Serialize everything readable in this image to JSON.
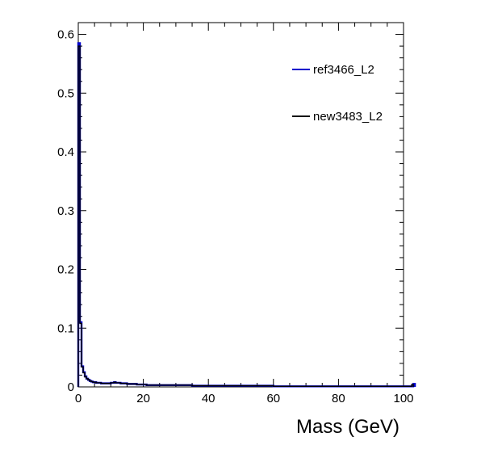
{
  "chart_data": {
    "type": "line",
    "title": "",
    "xlabel": "Mass (GeV)",
    "ylabel": "",
    "xlim": [
      0,
      100
    ],
    "ylim": [
      0,
      0.62
    ],
    "x_ticks": [
      "0",
      "20",
      "40",
      "60",
      "80",
      "100"
    ],
    "y_ticks": [
      "0",
      "0.1",
      "0.2",
      "0.3",
      "0.4",
      "0.5",
      "0.6"
    ],
    "legend_position": "top-right",
    "grid": false,
    "bin_width": 0.5,
    "series": [
      {
        "name": "ref3466_L2",
        "color": "#0000cc",
        "values": [
          0.585,
          0.11,
          0.035,
          0.025,
          0.018,
          0.014,
          0.012,
          0.01,
          0.009,
          0.008,
          0.008,
          0.007,
          0.007,
          0.007,
          0.006,
          0.006,
          0.006,
          0.006,
          0.006,
          0.006,
          0.007,
          0.007,
          0.008,
          0.007,
          0.007,
          0.007,
          0.006,
          0.006,
          0.006,
          0.006,
          0.005,
          0.005,
          0.005,
          0.005,
          0.005,
          0.005,
          0.004,
          0.004,
          0.004,
          0.004,
          0.004,
          0.004,
          0.003,
          0.003,
          0.003,
          0.003,
          0.003,
          0.003,
          0.003,
          0.003,
          0.003,
          0.003,
          0.003,
          0.003,
          0.003,
          0.003,
          0.003,
          0.003,
          0.003,
          0.003,
          0.003,
          0.003,
          0.003,
          0.003,
          0.003,
          0.003,
          0.003,
          0.003,
          0.003,
          0.003,
          0.002,
          0.002,
          0.002,
          0.002,
          0.002,
          0.002,
          0.002,
          0.002,
          0.002,
          0.002,
          0.002,
          0.002,
          0.002,
          0.002,
          0.002,
          0.002,
          0.002,
          0.002,
          0.002,
          0.002,
          0.002,
          0.002,
          0.002,
          0.002,
          0.002,
          0.002,
          0.002,
          0.002,
          0.002,
          0.002,
          0.002,
          0.002,
          0.002,
          0.002,
          0.002,
          0.002,
          0.002,
          0.002,
          0.002,
          0.002,
          0.002,
          0.002,
          0.002,
          0.002,
          0.002,
          0.002,
          0.002,
          0.002,
          0.002,
          0.002,
          0.001,
          0.001,
          0.001,
          0.001,
          0.001,
          0.001,
          0.001,
          0.001,
          0.001,
          0.001,
          0.001,
          0.001,
          0.001,
          0.001,
          0.001,
          0.001,
          0.001,
          0.001,
          0.001,
          0.001,
          0.001,
          0.001,
          0.001,
          0.001,
          0.001,
          0.001,
          0.001,
          0.001,
          0.001,
          0.001,
          0.001,
          0.001,
          0.001,
          0.001,
          0.001,
          0.001,
          0.001,
          0.001,
          0.001,
          0.001,
          0.001,
          0.001,
          0.001,
          0.001,
          0.001,
          0.001,
          0.001,
          0.001,
          0.001,
          0.001,
          0.001,
          0.001,
          0.001,
          0.001,
          0.001,
          0.001,
          0.001,
          0.001,
          0.001,
          0.001,
          0.001,
          0.001,
          0.001,
          0.001,
          0.001,
          0.001,
          0.001,
          0.001,
          0.001,
          0.001,
          0.001,
          0.001,
          0.001,
          0.001,
          0.001,
          0.001,
          0.001,
          0.001,
          0.001,
          0.001,
          0.001,
          0.001,
          0.001,
          0.001,
          0.001,
          0.001,
          0.005
        ]
      },
      {
        "name": "new3483_L2",
        "color": "#000000",
        "values": [
          0.58,
          0.108,
          0.034,
          0.024,
          0.017,
          0.014,
          0.012,
          0.01,
          0.009,
          0.008,
          0.008,
          0.007,
          0.007,
          0.007,
          0.006,
          0.006,
          0.006,
          0.006,
          0.006,
          0.006,
          0.007,
          0.007,
          0.008,
          0.007,
          0.007,
          0.007,
          0.006,
          0.006,
          0.006,
          0.006,
          0.005,
          0.005,
          0.005,
          0.005,
          0.005,
          0.005,
          0.004,
          0.004,
          0.004,
          0.004,
          0.004,
          0.004,
          0.003,
          0.003,
          0.003,
          0.003,
          0.003,
          0.003,
          0.003,
          0.003,
          0.003,
          0.003,
          0.003,
          0.003,
          0.003,
          0.003,
          0.003,
          0.003,
          0.003,
          0.003,
          0.003,
          0.003,
          0.003,
          0.003,
          0.003,
          0.003,
          0.003,
          0.003,
          0.003,
          0.003,
          0.002,
          0.002,
          0.002,
          0.002,
          0.002,
          0.002,
          0.002,
          0.002,
          0.002,
          0.002,
          0.002,
          0.002,
          0.002,
          0.002,
          0.002,
          0.002,
          0.002,
          0.002,
          0.002,
          0.002,
          0.002,
          0.002,
          0.002,
          0.002,
          0.002,
          0.002,
          0.002,
          0.002,
          0.002,
          0.002,
          0.002,
          0.002,
          0.002,
          0.002,
          0.002,
          0.002,
          0.002,
          0.002,
          0.002,
          0.002,
          0.002,
          0.002,
          0.002,
          0.002,
          0.002,
          0.002,
          0.002,
          0.002,
          0.002,
          0.002,
          0.001,
          0.001,
          0.001,
          0.001,
          0.001,
          0.001,
          0.001,
          0.001,
          0.001,
          0.001,
          0.001,
          0.001,
          0.001,
          0.001,
          0.001,
          0.001,
          0.001,
          0.001,
          0.001,
          0.001,
          0.001,
          0.001,
          0.001,
          0.001,
          0.001,
          0.001,
          0.001,
          0.001,
          0.001,
          0.001,
          0.001,
          0.001,
          0.001,
          0.001,
          0.001,
          0.001,
          0.001,
          0.001,
          0.001,
          0.001,
          0.001,
          0.001,
          0.001,
          0.001,
          0.001,
          0.001,
          0.001,
          0.001,
          0.001,
          0.001,
          0.001,
          0.001,
          0.001,
          0.001,
          0.001,
          0.001,
          0.001,
          0.001,
          0.001,
          0.001,
          0.001,
          0.001,
          0.001,
          0.001,
          0.001,
          0.001,
          0.001,
          0.001,
          0.001,
          0.001,
          0.001,
          0.001,
          0.001,
          0.001,
          0.001,
          0.001,
          0.001,
          0.001,
          0.001,
          0.001,
          0.001,
          0.001,
          0.001,
          0.001,
          0.001,
          0.004
        ]
      }
    ]
  }
}
